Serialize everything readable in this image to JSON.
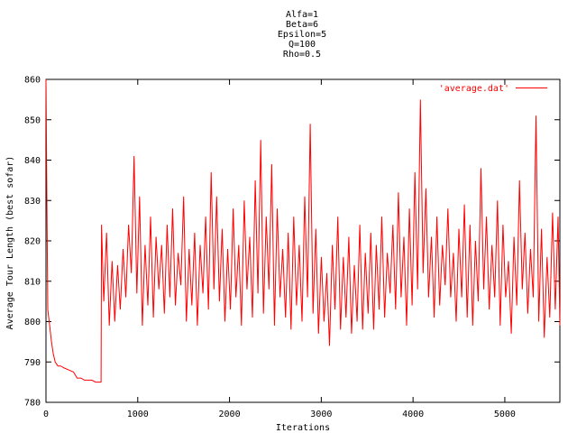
{
  "chart_data": {
    "type": "line",
    "title_lines": [
      "Alfa=1",
      "Beta=6",
      "Epsilon=5",
      "Q=100",
      "Rho=0.5"
    ],
    "xlabel": "Iterations",
    "ylabel": "Average Tour Length (best sofar)",
    "xlim": [
      0,
      5600
    ],
    "ylim": [
      780,
      860
    ],
    "x_ticks": [
      0,
      1000,
      2000,
      3000,
      4000,
      5000
    ],
    "x_tick_labels": [
      "0",
      "1000",
      "2000",
      "3000",
      "4000",
      "5000"
    ],
    "y_ticks": [
      780,
      790,
      800,
      810,
      820,
      830,
      840,
      850,
      860
    ],
    "y_tick_labels": [
      "780",
      "790",
      "800",
      "810",
      "820",
      "830",
      "840",
      "850",
      "860"
    ],
    "grid": false,
    "legend_position": "top-right",
    "series_color": "#ff0000",
    "series": [
      {
        "name": "'average.dat'",
        "x": [
          0,
          10,
          20,
          40,
          60,
          80,
          100,
          130,
          160,
          200,
          250,
          300,
          340,
          380,
          420,
          460,
          500,
          540,
          580,
          600,
          605,
          630,
          660,
          690,
          720,
          750,
          780,
          810,
          840,
          870,
          900,
          930,
          960,
          990,
          1020,
          1050,
          1080,
          1110,
          1140,
          1170,
          1200,
          1230,
          1260,
          1290,
          1320,
          1350,
          1380,
          1410,
          1440,
          1470,
          1500,
          1530,
          1560,
          1590,
          1620,
          1650,
          1680,
          1710,
          1740,
          1770,
          1800,
          1830,
          1860,
          1890,
          1920,
          1950,
          1980,
          2010,
          2040,
          2070,
          2100,
          2130,
          2160,
          2190,
          2220,
          2250,
          2280,
          2310,
          2340,
          2370,
          2400,
          2430,
          2460,
          2490,
          2520,
          2550,
          2580,
          2610,
          2640,
          2670,
          2700,
          2730,
          2760,
          2790,
          2820,
          2850,
          2880,
          2910,
          2940,
          2970,
          3000,
          3030,
          3060,
          3090,
          3120,
          3150,
          3180,
          3210,
          3240,
          3270,
          3300,
          3330,
          3360,
          3390,
          3420,
          3450,
          3480,
          3510,
          3540,
          3570,
          3600,
          3630,
          3660,
          3690,
          3720,
          3750,
          3780,
          3810,
          3840,
          3870,
          3900,
          3930,
          3960,
          3990,
          4020,
          4050,
          4080,
          4110,
          4140,
          4170,
          4200,
          4230,
          4260,
          4290,
          4320,
          4350,
          4380,
          4410,
          4440,
          4470,
          4500,
          4530,
          4560,
          4590,
          4620,
          4650,
          4680,
          4710,
          4740,
          4770,
          4800,
          4830,
          4860,
          4890,
          4920,
          4950,
          4980,
          5010,
          5040,
          5070,
          5100,
          5130,
          5160,
          5190,
          5220,
          5250,
          5280,
          5310,
          5340,
          5370,
          5400,
          5430,
          5460,
          5490,
          5520,
          5550,
          5580,
          5600
        ],
        "values": [
          860,
          830,
          803,
          799,
          795,
          792,
          790,
          789,
          789,
          788.5,
          788,
          787.5,
          786,
          786,
          785.5,
          785.5,
          785.5,
          785,
          785,
          785,
          824,
          805,
          822,
          799,
          815,
          800,
          814,
          803,
          818,
          806,
          824,
          812,
          841,
          807,
          831,
          799,
          819,
          804,
          826,
          801,
          821,
          808,
          819,
          802,
          824,
          806,
          828,
          804,
          817,
          809,
          831,
          800,
          818,
          804,
          822,
          799,
          819,
          807,
          826,
          803,
          837,
          808,
          831,
          805,
          823,
          800,
          818,
          803,
          828,
          806,
          819,
          799,
          830,
          808,
          821,
          801,
          835,
          807,
          845,
          802,
          826,
          808,
          839,
          799,
          828,
          806,
          818,
          801,
          822,
          798,
          826,
          804,
          819,
          800,
          831,
          806,
          849,
          802,
          823,
          797,
          816,
          800,
          812,
          794,
          819,
          803,
          826,
          798,
          816,
          801,
          821,
          797,
          814,
          800,
          824,
          798,
          817,
          802,
          822,
          798,
          819,
          803,
          826,
          801,
          817,
          807,
          824,
          803,
          832,
          806,
          821,
          799,
          828,
          804,
          837,
          808,
          855,
          812,
          833,
          806,
          821,
          801,
          826,
          804,
          819,
          809,
          828,
          806,
          817,
          800,
          823,
          806,
          829,
          801,
          824,
          799,
          820,
          805,
          838,
          808,
          826,
          803,
          819,
          806,
          830,
          799,
          824,
          806,
          815,
          797,
          821,
          804,
          835,
          808,
          822,
          802,
          818,
          806,
          851,
          800,
          823,
          796,
          816,
          801,
          827,
          803,
          826,
          799
        ]
      }
    ]
  }
}
